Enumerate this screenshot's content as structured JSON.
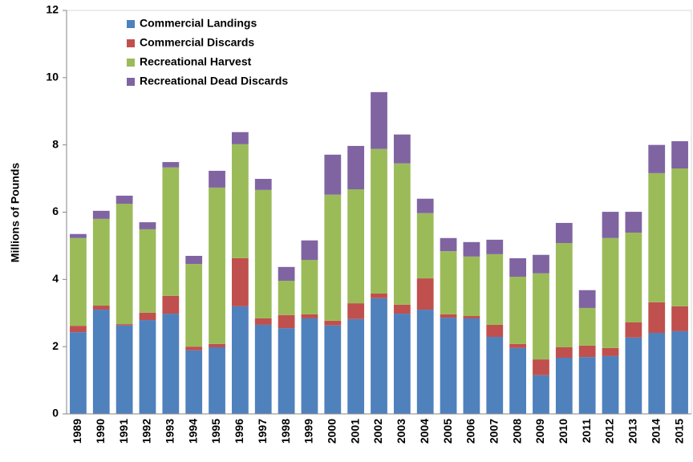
{
  "chart_data": {
    "type": "stacked_bar",
    "y_label": "Millions of Pounds",
    "categories": [
      "1989",
      "1990",
      "1991",
      "1992",
      "1993",
      "1994",
      "1995",
      "1996",
      "1997",
      "1998",
      "1999",
      "2000",
      "2001",
      "2002",
      "2003",
      "2004",
      "2005",
      "2006",
      "2007",
      "2008",
      "2009",
      "2010",
      "2011",
      "2012",
      "2013",
      "2014",
      "2015"
    ],
    "series": [
      {
        "name": "Commercial Landings",
        "color": "#4f81bd",
        "values": [
          2.43,
          3.1,
          2.63,
          2.79,
          2.98,
          1.89,
          1.98,
          3.2,
          2.65,
          2.55,
          2.84,
          2.63,
          2.82,
          3.44,
          2.98,
          3.1,
          2.86,
          2.84,
          2.29,
          1.96,
          1.15,
          1.67,
          1.69,
          1.72,
          2.27,
          2.41,
          2.46
        ]
      },
      {
        "name": "Commercial Discards",
        "color": "#c0504d",
        "values": [
          0.19,
          0.12,
          0.04,
          0.22,
          0.53,
          0.11,
          0.1,
          1.43,
          0.19,
          0.39,
          0.12,
          0.14,
          0.47,
          0.14,
          0.27,
          0.93,
          0.1,
          0.07,
          0.36,
          0.12,
          0.47,
          0.31,
          0.34,
          0.24,
          0.45,
          0.91,
          0.74
        ]
      },
      {
        "name": "Recreational Harvest",
        "color": "#9bbb59",
        "values": [
          2.61,
          2.58,
          3.58,
          2.48,
          3.82,
          2.46,
          4.65,
          3.39,
          3.82,
          1.02,
          1.62,
          3.75,
          3.39,
          4.3,
          4.2,
          1.94,
          1.88,
          1.77,
          2.1,
          2.0,
          2.56,
          3.1,
          1.12,
          3.27,
          2.67,
          3.84,
          4.1
        ]
      },
      {
        "name": "Recreational Dead Discards",
        "color": "#8064a2",
        "values": [
          0.12,
          0.24,
          0.24,
          0.21,
          0.16,
          0.24,
          0.5,
          0.36,
          0.33,
          0.41,
          0.58,
          1.19,
          1.29,
          1.69,
          0.86,
          0.43,
          0.39,
          0.43,
          0.43,
          0.55,
          0.55,
          0.6,
          0.53,
          0.78,
          0.62,
          0.84,
          0.81
        ]
      }
    ],
    "ylim": [
      0,
      12
    ],
    "yticks": [
      0,
      2,
      4,
      6,
      8,
      10,
      12
    ],
    "legend": "upper left"
  }
}
